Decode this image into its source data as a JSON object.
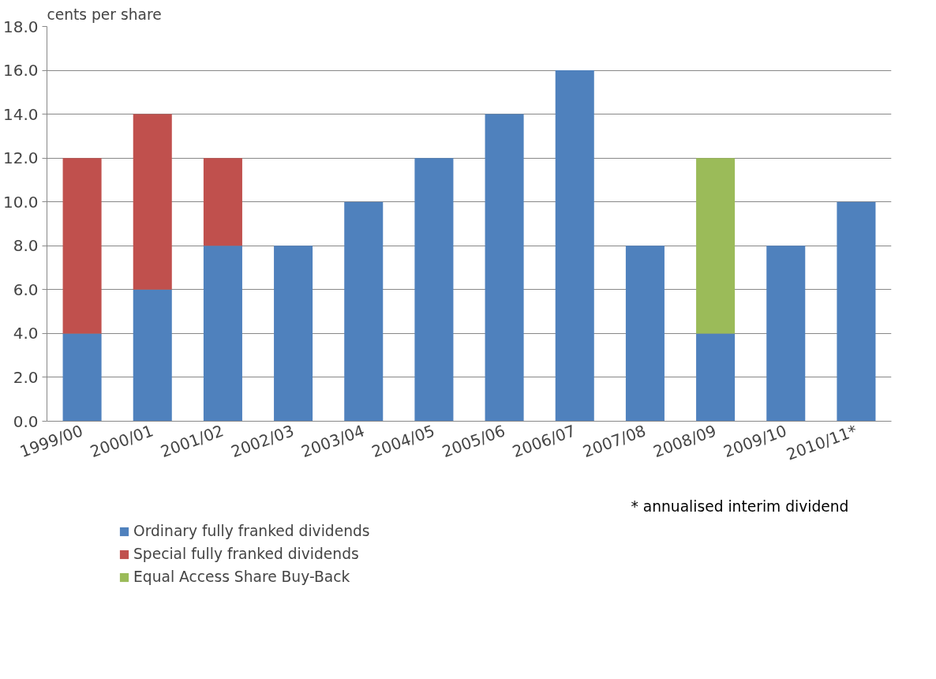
{
  "chart_data": {
    "type": "bar",
    "stacked": true,
    "ylabel": "cents per share",
    "categories": [
      "1999/00",
      "2000/01",
      "2001/02",
      "2002/03",
      "2003/04",
      "2004/05",
      "2005/06",
      "2006/07",
      "2007/08",
      "2008/09",
      "2009/10",
      "2010/11*"
    ],
    "series": [
      {
        "name": "Ordinary fully franked dividends",
        "color": "#4f81bd",
        "values": [
          4,
          6,
          8,
          8,
          10,
          12,
          14,
          16,
          8,
          4,
          8,
          10
        ]
      },
      {
        "name": "Special fully franked dividends",
        "color": "#c0504d",
        "values": [
          8,
          8,
          4,
          null,
          null,
          null,
          null,
          null,
          null,
          null,
          null,
          null
        ]
      },
      {
        "name": "Equal Access Share Buy-Back",
        "color": "#9bbb59",
        "values": [
          null,
          null,
          null,
          null,
          null,
          null,
          null,
          null,
          null,
          8,
          null,
          null
        ]
      }
    ],
    "ylim": [
      0,
      18
    ],
    "yticks": [
      {
        "value": 0,
        "label": "0.0"
      },
      {
        "value": 2,
        "label": "2.0"
      },
      {
        "value": 4,
        "label": "4.0"
      },
      {
        "value": 6,
        "label": "6.0"
      },
      {
        "value": 8,
        "label": "8.0"
      },
      {
        "value": 10,
        "label": "10.0"
      },
      {
        "value": 12,
        "label": "12.0"
      },
      {
        "value": 14,
        "label": "14.0"
      },
      {
        "value": 16,
        "label": "16.0"
      },
      {
        "value": 18,
        "label": "18.0"
      }
    ],
    "grid": "y",
    "legend": "bottom",
    "annotations": [
      "* annualised interim dividend"
    ]
  }
}
